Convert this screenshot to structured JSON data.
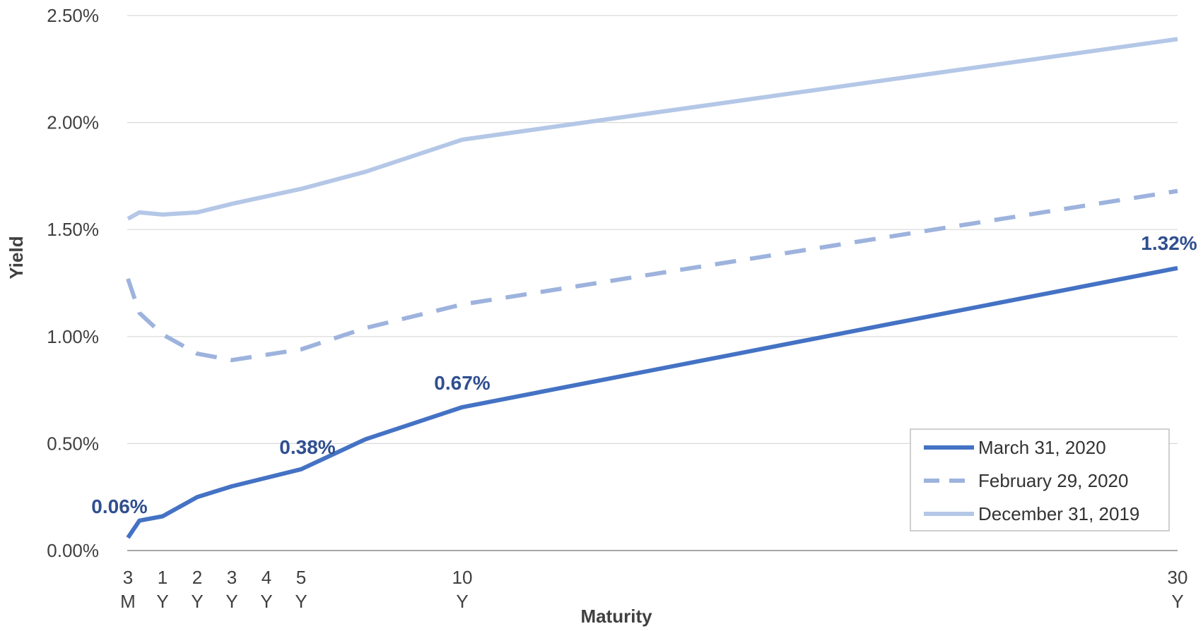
{
  "chart_data": {
    "type": "line",
    "title": "",
    "xlabel": "Maturity",
    "ylabel": "Yield",
    "x_years": [
      0.25,
      1,
      2,
      3,
      4,
      5,
      10,
      30
    ],
    "x_tick_labels": [
      {
        "top": "3",
        "bottom": "M"
      },
      {
        "top": "1",
        "bottom": "Y"
      },
      {
        "top": "2",
        "bottom": "Y"
      },
      {
        "top": "3",
        "bottom": "Y"
      },
      {
        "top": "4",
        "bottom": "Y"
      },
      {
        "top": "5",
        "bottom": "Y"
      },
      {
        "top": "10",
        "bottom": "Y"
      },
      {
        "top": "30",
        "bottom": "Y"
      }
    ],
    "y_ticks": [
      "0.00%",
      "0.50%",
      "1.00%",
      "1.50%",
      "2.00%",
      "2.50%"
    ],
    "ylim": [
      0,
      2.5
    ],
    "grid": true,
    "legend_position": "bottom-right",
    "series": [
      {
        "name": "March 31, 2020",
        "color": "#4472C4",
        "dash": "solid",
        "x": [
          0.25,
          0.5,
          1,
          2,
          3,
          5,
          7,
          10,
          30
        ],
        "y": [
          0.06,
          0.14,
          0.16,
          0.25,
          0.3,
          0.38,
          0.52,
          0.67,
          1.32
        ]
      },
      {
        "name": "February 29, 2020",
        "color": "#9DB3DD",
        "dash": "dashed",
        "x": [
          0.25,
          0.5,
          1,
          2,
          3,
          5,
          7,
          10,
          30
        ],
        "y": [
          1.27,
          1.11,
          1.01,
          0.92,
          0.89,
          0.94,
          1.04,
          1.15,
          1.68
        ]
      },
      {
        "name": "December 31, 2019",
        "color": "#B4C7E7",
        "dash": "solid",
        "x": [
          0.25,
          0.5,
          1,
          2,
          3,
          5,
          7,
          10,
          30
        ],
        "y": [
          1.55,
          1.58,
          1.57,
          1.58,
          1.62,
          1.69,
          1.77,
          1.92,
          2.39
        ]
      }
    ],
    "annotations": [
      {
        "series": "March 31, 2020",
        "x": 0.25,
        "y": 0.06,
        "text": "0.06%"
      },
      {
        "series": "March 31, 2020",
        "x": 5,
        "y": 0.38,
        "text": "0.38%"
      },
      {
        "series": "March 31, 2020",
        "x": 10,
        "y": 0.67,
        "text": "0.67%"
      },
      {
        "series": "March 31, 2020",
        "x": 30,
        "y": 1.32,
        "text": "1.32%"
      }
    ]
  }
}
